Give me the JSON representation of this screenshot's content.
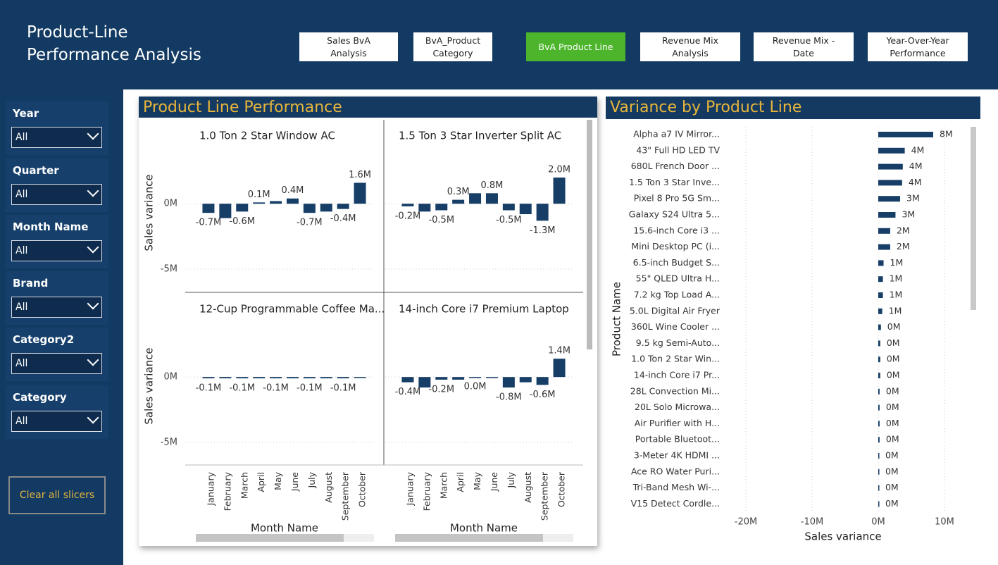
{
  "header": {
    "title": "Product-Line Performance Analysis"
  },
  "nav": [
    {
      "label": "Sales BvA Analysis",
      "active": false
    },
    {
      "label": "BvA_Product Category",
      "active": false
    },
    {
      "label": "BvA Product Line",
      "active": true
    },
    {
      "label": "Revenue Mix Analysis",
      "active": false
    },
    {
      "label": "Revenue Mix - Date",
      "active": false
    },
    {
      "label": "Year-Over-Year Performance",
      "active": false
    }
  ],
  "slicers": [
    {
      "label": "Year",
      "value": "All"
    },
    {
      "label": "Quarter",
      "value": "All"
    },
    {
      "label": "Month Name",
      "value": "All"
    },
    {
      "label": "Brand",
      "value": "All"
    },
    {
      "label": "Category2",
      "value": "All"
    },
    {
      "label": "Category",
      "value": "All"
    }
  ],
  "clear_button": "Clear all slicers",
  "chart_data": [
    {
      "type": "bar",
      "title": "Product Line Performance",
      "ylabel": "Sales variance",
      "xlabel": "Month Name",
      "color": "#163e66",
      "grid": true,
      "categories": [
        "January",
        "February",
        "March",
        "April",
        "May",
        "June",
        "July",
        "August",
        "September",
        "October"
      ],
      "ylim": [
        -6.8,
        6.2
      ],
      "yticks": [
        {
          "value": 0,
          "label": "0M"
        },
        {
          "value": -5,
          "label": "-5M"
        }
      ],
      "panels": [
        {
          "title": "1.0 Ton 2 Star Window AC",
          "values": [
            -0.7,
            -1.1,
            -0.6,
            0.1,
            0.2,
            0.4,
            -0.7,
            -0.6,
            -0.4,
            1.6
          ],
          "value_labels": [
            "-0.7M",
            null,
            "-0.6M",
            "0.1M",
            null,
            "0.4M",
            "-0.7M",
            null,
            "-0.4M",
            "1.6M"
          ]
        },
        {
          "title": "1.5 Ton 3 Star Inverter Split AC",
          "values": [
            -0.2,
            -0.6,
            -0.5,
            0.3,
            0.8,
            0.8,
            -0.5,
            -0.8,
            -1.3,
            2.0
          ],
          "value_labels": [
            "-0.2M",
            null,
            "-0.5M",
            "0.3M",
            null,
            "0.8M",
            "-0.5M",
            null,
            "-1.3M",
            "2.0M"
          ]
        },
        {
          "title": "12-Cup Programmable Coffee Ma...",
          "values": [
            -0.1,
            -0.1,
            -0.1,
            -0.1,
            -0.1,
            -0.1,
            -0.1,
            -0.1,
            -0.1,
            0.0
          ],
          "value_labels": [
            "-0.1M",
            null,
            "-0.1M",
            null,
            "-0.1M",
            null,
            "-0.1M",
            null,
            "-0.1M",
            null
          ]
        },
        {
          "title": "14-inch Core i7 Premium Laptop",
          "values": [
            -0.4,
            -0.8,
            -0.2,
            -0.2,
            0.0,
            0.0,
            -0.8,
            -0.4,
            -0.6,
            1.4
          ],
          "value_labels": [
            "-0.4M",
            null,
            "-0.2M",
            null,
            "0.0M",
            null,
            "-0.8M",
            null,
            "-0.6M",
            "1.4M"
          ]
        }
      ]
    },
    {
      "type": "barh",
      "title": "Variance by Product Line",
      "ylabel": "Product Name",
      "xlabel": "Sales variance",
      "color": "#163e66",
      "grid": true,
      "categories": [
        "Alpha a7 IV Mirror...",
        "43\" Full HD LED TV",
        "680L French Door ...",
        "1.5 Ton 3 Star Inve...",
        "Pixel 8 Pro 5G Sm...",
        "Galaxy S24 Ultra 5...",
        "15.6-inch Core i3 ...",
        "Mini Desktop PC (i...",
        "6.5-inch Budget S...",
        "55\" QLED Ultra H...",
        "7.2 kg Top Load A...",
        "5.0L Digital Air Fryer",
        "360L Wine Cooler ...",
        "9.5 kg Semi-Auto...",
        "1.0 Ton 2 Star Win...",
        "14-inch Core i7 Pr...",
        "28L Convection Mi...",
        "20L Solo Microwa...",
        "Air Purifier with H...",
        "Portable Bluetoot...",
        "3-Meter 4K HDMI ...",
        "Ace RO Water Puri...",
        "Tri-Band Mesh Wi-...",
        "V15 Detect Cordle..."
      ],
      "values": [
        8.3,
        4.0,
        3.7,
        3.6,
        3.3,
        2.6,
        1.8,
        1.8,
        0.8,
        0.7,
        0.7,
        0.6,
        0.4,
        0.3,
        0.3,
        0.3,
        0.2,
        0.2,
        0.2,
        0.2,
        0.1,
        0.1,
        0.1,
        0.1
      ],
      "value_labels": [
        "8M",
        "4M",
        "4M",
        "4M",
        "3M",
        "3M",
        "2M",
        "2M",
        "1M",
        "1M",
        "1M",
        "1M",
        "0M",
        "0M",
        "0M",
        "0M",
        "0M",
        "0M",
        "0M",
        "0M",
        "0M",
        "0M",
        "0M",
        "0M"
      ],
      "xlim": [
        -22.5,
        13
      ],
      "xticks": [
        {
          "value": -20,
          "label": "-20M"
        },
        {
          "value": -10,
          "label": "-10M"
        },
        {
          "value": 0,
          "label": "0M"
        },
        {
          "value": 10,
          "label": "10M"
        }
      ]
    }
  ]
}
